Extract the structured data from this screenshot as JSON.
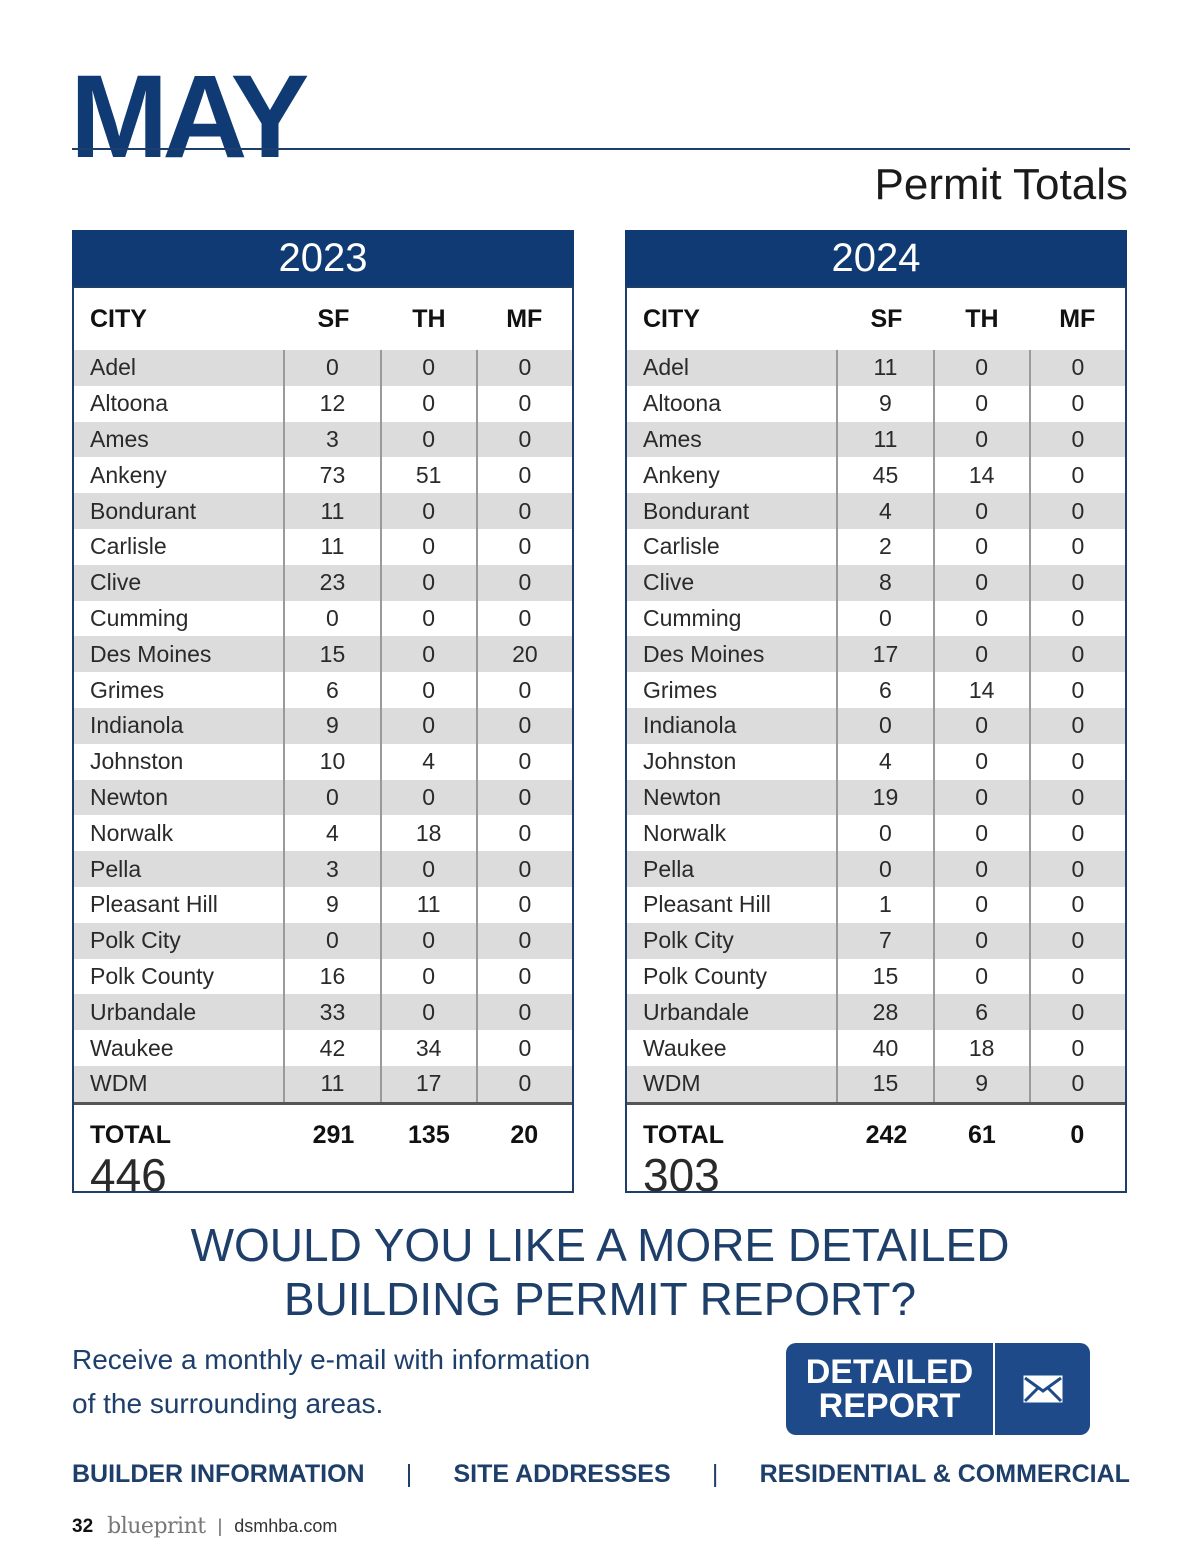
{
  "header": {
    "month": "MAY",
    "subtitle": "Permit Totals"
  },
  "columns": {
    "city": "CITY",
    "sf": "SF",
    "th": "TH",
    "mf": "MF"
  },
  "tables": [
    {
      "year": "2023",
      "rows": [
        [
          "Adel",
          "0",
          "0",
          "0"
        ],
        [
          "Altoona",
          "12",
          "0",
          "0"
        ],
        [
          "Ames",
          "3",
          "0",
          "0"
        ],
        [
          "Ankeny",
          "73",
          "51",
          "0"
        ],
        [
          "Bondurant",
          "11",
          "0",
          "0"
        ],
        [
          "Carlisle",
          "11",
          "0",
          "0"
        ],
        [
          "Clive",
          "23",
          "0",
          "0"
        ],
        [
          "Cumming",
          "0",
          "0",
          "0"
        ],
        [
          "Des Moines",
          "15",
          "0",
          "20"
        ],
        [
          "Grimes",
          "6",
          "0",
          "0"
        ],
        [
          "Indianola",
          "9",
          "0",
          "0"
        ],
        [
          "Johnston",
          "10",
          "4",
          "0"
        ],
        [
          "Newton",
          "0",
          "0",
          "0"
        ],
        [
          "Norwalk",
          "4",
          "18",
          "0"
        ],
        [
          "Pella",
          "3",
          "0",
          "0"
        ],
        [
          "Pleasant Hill",
          "9",
          "11",
          "0"
        ],
        [
          "Polk City",
          "0",
          "0",
          "0"
        ],
        [
          "Polk County",
          "16",
          "0",
          "0"
        ],
        [
          "Urbandale",
          "33",
          "0",
          "0"
        ],
        [
          "Waukee",
          "42",
          "34",
          "0"
        ],
        [
          "WDM",
          "11",
          "17",
          "0"
        ]
      ],
      "total_label": "TOTAL",
      "totals": [
        "291",
        "135",
        "20"
      ],
      "grand_total": "446"
    },
    {
      "year": "2024",
      "rows": [
        [
          "Adel",
          "11",
          "0",
          "0"
        ],
        [
          "Altoona",
          "9",
          "0",
          "0"
        ],
        [
          "Ames",
          "11",
          "0",
          "0"
        ],
        [
          "Ankeny",
          "45",
          "14",
          "0"
        ],
        [
          "Bondurant",
          "4",
          "0",
          "0"
        ],
        [
          "Carlisle",
          "2",
          "0",
          "0"
        ],
        [
          "Clive",
          "8",
          "0",
          "0"
        ],
        [
          "Cumming",
          "0",
          "0",
          "0"
        ],
        [
          "Des Moines",
          "17",
          "0",
          "0"
        ],
        [
          "Grimes",
          "6",
          "14",
          "0"
        ],
        [
          "Indianola",
          "0",
          "0",
          "0"
        ],
        [
          "Johnston",
          "4",
          "0",
          "0"
        ],
        [
          "Newton",
          "19",
          "0",
          "0"
        ],
        [
          "Norwalk",
          "0",
          "0",
          "0"
        ],
        [
          "Pella",
          "0",
          "0",
          "0"
        ],
        [
          "Pleasant Hill",
          "1",
          "0",
          "0"
        ],
        [
          "Polk City",
          "7",
          "0",
          "0"
        ],
        [
          "Polk County",
          "15",
          "0",
          "0"
        ],
        [
          "Urbandale",
          "28",
          "6",
          "0"
        ],
        [
          "Waukee",
          "40",
          "18",
          "0"
        ],
        [
          "WDM",
          "15",
          "9",
          "0"
        ]
      ],
      "total_label": "TOTAL",
      "totals": [
        "242",
        "61",
        "0"
      ],
      "grand_total": "303"
    }
  ],
  "cta": {
    "heading_line1": "WOULD YOU LIKE A MORE DETAILED",
    "heading_line2": "BUILDING PERMIT REPORT?",
    "text_line1": "Receive a monthly e-mail with information",
    "text_line2": "of the surrounding areas.",
    "button_line1": "DETAILED",
    "button_line2": "REPORT",
    "button_icon": "mail-icon"
  },
  "footer_links": [
    "BUILDER INFORMATION",
    "SITE ADDRESSES",
    "RESIDENTIAL & COMMERCIAL"
  ],
  "footer_separator": "|",
  "page_footer": {
    "page_number": "32",
    "brand": "blueprint",
    "separator": "|",
    "site": "dsmhba.com"
  },
  "colors": {
    "navy": "#0f3a73",
    "button": "#1e4a8a",
    "row_shade": "#dcdcdc"
  }
}
